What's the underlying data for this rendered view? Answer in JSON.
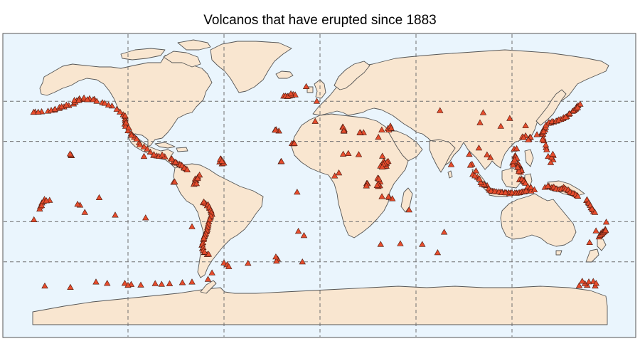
{
  "title": "Volcanos that have erupted since 1883",
  "colors": {
    "ocean": "#eaf5fd",
    "land": "#f9e6d0",
    "coast": "#555555",
    "grid": "#707070",
    "marker_fill": "#e64c2c",
    "marker_stroke": "#4a1a10"
  },
  "map": {
    "projection": "equirectangular",
    "graticule_longitudes": [
      -120,
      -60,
      0,
      60,
      120
    ],
    "graticule_latitudes": [
      -60,
      -30,
      30,
      60
    ]
  },
  "volcanoes": [
    [
      -178,
      52
    ],
    [
      -174,
      52.2
    ],
    [
      -170,
      52.6
    ],
    [
      -166,
      53.5
    ],
    [
      -163,
      54.7
    ],
    [
      -160,
      55.8
    ],
    [
      -157,
      56.8
    ],
    [
      -154,
      58
    ],
    [
      -153,
      59.4
    ],
    [
      -152,
      60.5
    ],
    [
      -150,
      61.3
    ],
    [
      -148,
      61.5
    ],
    [
      -144,
      62
    ],
    [
      -141,
      61.5
    ],
    [
      -136,
      59
    ],
    [
      -130,
      56.5
    ],
    [
      -127,
      54
    ],
    [
      -123,
      50
    ],
    [
      -122,
      48.8
    ],
    [
      -121.8,
      46.8
    ],
    [
      -121.7,
      45.3
    ],
    [
      -122,
      43
    ],
    [
      -121.5,
      41.3
    ],
    [
      -120,
      38
    ],
    [
      -118,
      36
    ],
    [
      -116,
      33.2
    ],
    [
      -113,
      29
    ],
    [
      -110,
      26
    ],
    [
      -106,
      22
    ],
    [
      -104,
      19.5
    ],
    [
      -102,
      19.2
    ],
    [
      -99,
      19.3
    ],
    [
      -97,
      18.6
    ],
    [
      -93,
      17.2
    ],
    [
      -91.5,
      15
    ],
    [
      -89.5,
      13.8
    ],
    [
      -88,
      13.2
    ],
    [
      -86.5,
      12.2
    ],
    [
      -85,
      10.6
    ],
    [
      -83.8,
      9.6
    ],
    [
      -78,
      2
    ],
    [
      -77.5,
      1
    ],
    [
      -78.3,
      -0.5
    ],
    [
      -78.6,
      -1.6
    ],
    [
      -73,
      -15.8
    ],
    [
      -71.5,
      -16.4
    ],
    [
      -70.5,
      -18
    ],
    [
      -69,
      -20
    ],
    [
      -68,
      -22
    ],
    [
      -67.5,
      -24.5
    ],
    [
      -68.5,
      -27
    ],
    [
      -69.5,
      -30
    ],
    [
      -70,
      -33
    ],
    [
      -70.4,
      -35.6
    ],
    [
      -71,
      -37.5
    ],
    [
      -71.8,
      -39.5
    ],
    [
      -72.4,
      -41.3
    ],
    [
      -72.8,
      -43.4
    ],
    [
      -73.2,
      -45.5
    ],
    [
      -73.8,
      -47.5
    ],
    [
      -73.5,
      -50
    ],
    [
      -72.3,
      -53
    ],
    [
      -70.5,
      -54.5
    ],
    [
      -155.3,
      19.4
    ],
    [
      -155.6,
      19.8
    ],
    [
      -156.2,
      20.7
    ],
    [
      -91.5,
      -0.5
    ],
    [
      -90.8,
      -0.3
    ],
    [
      -110,
      18.8
    ],
    [
      -112.5,
      27.6
    ],
    [
      -61.2,
      13.3
    ],
    [
      -61.5,
      16.2
    ],
    [
      -62,
      17
    ],
    [
      -62.7,
      14.7
    ],
    [
      -60.6,
      14
    ],
    [
      -28,
      38.6
    ],
    [
      -25.7,
      37.8
    ],
    [
      -27.4,
      38.8
    ],
    [
      -17.5,
      28.4
    ],
    [
      -16.6,
      28.3
    ],
    [
      -24.4,
      14.9
    ],
    [
      -19,
      64
    ],
    [
      -17.6,
      64.4
    ],
    [
      -16.8,
      65.1
    ],
    [
      -22.7,
      63.9
    ],
    [
      -20.5,
      63.6
    ],
    [
      -15.5,
      64.8
    ],
    [
      -8.6,
      71
    ],
    [
      14.2,
      40.8
    ],
    [
      15,
      37.7
    ],
    [
      15.2,
      38.8
    ],
    [
      14.9,
      38.5
    ],
    [
      25.4,
      36.4
    ],
    [
      27.2,
      36.6
    ],
    [
      38.6,
      38.6
    ],
    [
      42.5,
      39.7
    ],
    [
      44.3,
      39.7
    ],
    [
      43,
      38.6
    ],
    [
      36.5,
      33.1
    ],
    [
      44,
      41.5
    ],
    [
      40.7,
      12.6
    ],
    [
      41.5,
      13.5
    ],
    [
      42.6,
      15.1
    ],
    [
      39.9,
      15.4
    ],
    [
      38.5,
      12.3
    ],
    [
      39.1,
      11.8
    ],
    [
      40.2,
      11.2
    ],
    [
      41.4,
      11.5
    ],
    [
      36.6,
      2.3
    ],
    [
      36.1,
      2.6
    ],
    [
      37.6,
      -0.2
    ],
    [
      29.2,
      -1.4
    ],
    [
      29.7,
      -1.5
    ],
    [
      36.4,
      -3.6
    ],
    [
      35.9,
      -2.7
    ],
    [
      37.4,
      -3.1
    ],
    [
      43.3,
      -11.8
    ],
    [
      45.2,
      -12.8
    ],
    [
      55.7,
      -21.2
    ],
    [
      24.2,
      20.2
    ],
    [
      14.5,
      20.5
    ],
    [
      17.7,
      21
    ],
    [
      9.2,
      4.2
    ],
    [
      11.8,
      6.5
    ],
    [
      -13.5,
      -37.1
    ],
    [
      -14.3,
      -7.9
    ],
    [
      -10,
      -40.3
    ],
    [
      37.9,
      -46.9
    ],
    [
      50.2,
      -46.4
    ],
    [
      63.9,
      -46.9
    ],
    [
      73.5,
      -53.1
    ],
    [
      77.6,
      -37.8
    ],
    [
      110.4,
      -7.6
    ],
    [
      112.9,
      -7.9
    ],
    [
      114,
      -8
    ],
    [
      115.4,
      -8.3
    ],
    [
      116.5,
      -8.4
    ],
    [
      117.8,
      -8.2
    ],
    [
      119,
      -8.4
    ],
    [
      121.7,
      -8.5
    ],
    [
      123,
      -8.5
    ],
    [
      124.8,
      -8.3
    ],
    [
      126.4,
      -7.6
    ],
    [
      128,
      -7.4
    ],
    [
      130,
      -6.6
    ],
    [
      104.5,
      -3
    ],
    [
      101.3,
      -2
    ],
    [
      98.4,
      3.2
    ],
    [
      95.5,
      5.4
    ],
    [
      106,
      -6.4
    ],
    [
      107.7,
      -7.2
    ],
    [
      108.4,
      -7.3
    ],
    [
      125.4,
      1.4
    ],
    [
      124.7,
      1.4
    ],
    [
      127.5,
      1.1
    ],
    [
      127.3,
      0.8
    ],
    [
      127.9,
      -0.5
    ],
    [
      129.7,
      -4.5
    ],
    [
      130.8,
      -6.3
    ],
    [
      131.2,
      -5.1
    ],
    [
      131.9,
      -7.1
    ],
    [
      120.4,
      13.9
    ],
    [
      121,
      14.1
    ],
    [
      123.7,
      13.3
    ],
    [
      124.1,
      12.8
    ],
    [
      124.8,
      11.6
    ],
    [
      125.5,
      9.6
    ],
    [
      125.4,
      7
    ],
    [
      124.3,
      10.4
    ],
    [
      122,
      19.5
    ],
    [
      122.2,
      18.8
    ],
    [
      121.3,
      24.3
    ],
    [
      130.6,
      31.6
    ],
    [
      131.1,
      32.9
    ],
    [
      131.6,
      33.1
    ],
    [
      138.5,
      35.3
    ],
    [
      138.6,
      36.4
    ],
    [
      139.4,
      35.4
    ],
    [
      140.7,
      38.7
    ],
    [
      140.1,
      39.8
    ],
    [
      141,
      40.6
    ],
    [
      142.7,
      43.6
    ],
    [
      144.2,
      43.8
    ],
    [
      146,
      44.5
    ],
    [
      148.2,
      45.4
    ],
    [
      150.6,
      46.5
    ],
    [
      152.3,
      47.8
    ],
    [
      154.2,
      48.6
    ],
    [
      155.5,
      50.3
    ],
    [
      157.8,
      52.5
    ],
    [
      158.9,
      53.3
    ],
    [
      159.6,
      54
    ],
    [
      160.4,
      55.9
    ],
    [
      161.3,
      56.7
    ],
    [
      162.6,
      57.8
    ],
    [
      142.6,
      18.8
    ],
    [
      145.7,
      16.3
    ],
    [
      145.8,
      19.5
    ],
    [
      140,
      30.5
    ],
    [
      139.5,
      32.5
    ],
    [
      141.3,
      25.4
    ],
    [
      128.5,
      41.8
    ],
    [
      126.5,
      33.4
    ],
    [
      118.6,
      47.2
    ],
    [
      113,
      41.3
    ],
    [
      99.3,
      25.1
    ],
    [
      106.5,
      18
    ],
    [
      95,
      13
    ],
    [
      94,
      12.2
    ],
    [
      93.3,
      20.4
    ],
    [
      82,
      12.7
    ],
    [
      75,
      53
    ],
    [
      102,
      51.5
    ],
    [
      100,
      44
    ],
    [
      104.4,
      20
    ],
    [
      143.2,
      -3.7
    ],
    [
      144.9,
      -4.4
    ],
    [
      145.7,
      -4.8
    ],
    [
      146.9,
      -5.2
    ],
    [
      148.1,
      -5.5
    ],
    [
      150.5,
      -5.7
    ],
    [
      151.4,
      -5.3
    ],
    [
      152.2,
      -4.3
    ],
    [
      154.8,
      -6.5
    ],
    [
      155.6,
      -6.8
    ],
    [
      156.9,
      -8.3
    ],
    [
      159,
      -9
    ],
    [
      160.6,
      -10.4
    ],
    [
      166.6,
      -14.1
    ],
    [
      167.6,
      -15.4
    ],
    [
      168.4,
      -16.5
    ],
    [
      169.4,
      -19.5
    ],
    [
      170.6,
      -21.1
    ],
    [
      171,
      -22.4
    ],
    [
      174.4,
      -41.3
    ],
    [
      175.6,
      -39.3
    ],
    [
      176.3,
      -38.5
    ],
    [
      177.2,
      -37.5
    ],
    [
      178.3,
      -35.7
    ],
    [
      175.7,
      -39.6
    ],
    [
      175.5,
      -38.8
    ],
    [
      176.5,
      -37.6
    ],
    [
      168.5,
      -45.5
    ],
    [
      172.5,
      -36.8
    ],
    [
      178.9,
      -30.3
    ],
    [
      -178.8,
      -28.5
    ],
    [
      -175.2,
      -20.5
    ],
    [
      -174.8,
      -18.8
    ],
    [
      -173.8,
      -15.9
    ],
    [
      -172.2,
      -13.3
    ],
    [
      -169,
      -14
    ],
    [
      -150,
      -17.6
    ],
    [
      -138,
      -12
    ],
    [
      -128,
      -25
    ],
    [
      -109,
      -27.1
    ],
    [
      -80,
      -33.7
    ],
    [
      -60,
      -60.7
    ],
    [
      -58,
      -62.1
    ],
    [
      -57,
      -63.5
    ],
    [
      -26.5,
      -57.8
    ],
    [
      -27.2,
      -59.4
    ],
    [
      -27.6,
      -56.3
    ],
    [
      -11,
      -60
    ],
    [
      167,
      -77.5
    ],
    [
      -156,
      -79
    ],
    [
      -140,
      -75
    ],
    [
      -133,
      -76
    ],
    [
      -118,
      -76.8
    ],
    [
      -112,
      -77.3
    ],
    [
      -103,
      -76.2
    ],
    [
      -94,
      -76.3
    ],
    [
      -80,
      -75
    ],
    [
      -122,
      -76
    ],
    [
      165.6,
      -76.2
    ],
    [
      163.9,
      -74.4
    ],
    [
      170.8,
      -74.6
    ],
    [
      172,
      -78
    ],
    [
      -179,
      51.8
    ],
    [
      -176.1,
      51.9
    ],
    [
      -168,
      53.2
    ],
    [
      -165.6,
      54.1
    ],
    [
      -162.9,
      55.4
    ],
    [
      -161.5,
      56
    ],
    [
      -158.5,
      57.2
    ],
    [
      -150.4,
      61.9
    ],
    [
      -147.5,
      62.5
    ],
    [
      -153.5,
      60.7
    ],
    [
      -141.8,
      61.2
    ],
    [
      -139.5,
      60
    ],
    [
      -134.5,
      58.5
    ],
    [
      -132.2,
      57.2
    ],
    [
      -125,
      52
    ],
    [
      -121.8,
      49.1
    ],
    [
      -121.2,
      44
    ],
    [
      -119.6,
      40.2
    ],
    [
      -117.8,
      34.6
    ],
    [
      -114.6,
      31.8
    ],
    [
      -108,
      24.3
    ],
    [
      -103.8,
      20.2
    ],
    [
      -100.7,
      18.9
    ],
    [
      -98.6,
      19.9
    ],
    [
      -92.5,
      16.7
    ],
    [
      -90.8,
      14.3
    ],
    [
      -90.3,
      14.5
    ],
    [
      -87.4,
      12.6
    ],
    [
      -86.2,
      11.8
    ],
    [
      -84.8,
      10.1
    ],
    [
      -83,
      8.8
    ],
    [
      -76.3,
      3.4
    ],
    [
      -75.3,
      4.9
    ],
    [
      -77.9,
      0.6
    ],
    [
      -76.5,
      2.3
    ],
    [
      -78.8,
      -2
    ],
    [
      -77.2,
      -1.5
    ],
    [
      -72.6,
      -15.2
    ],
    [
      -70,
      -17.2
    ],
    [
      -69.2,
      -19.1
    ],
    [
      -68.3,
      -21.3
    ],
    [
      -67.9,
      -23.3
    ],
    [
      -68.2,
      -25.7
    ],
    [
      -68.9,
      -28.2
    ],
    [
      -69.8,
      -31.6
    ],
    [
      -70.3,
      -34.2
    ],
    [
      -70.8,
      -36.6
    ],
    [
      -71.4,
      -38.8
    ],
    [
      -72.1,
      -40.5
    ],
    [
      -72.6,
      -42.4
    ],
    [
      -73.5,
      -46.7
    ],
    [
      -73,
      -49.2
    ],
    [
      -72.9,
      -51.4
    ],
    [
      -72.1,
      -52.7
    ],
    [
      -69.6,
      -54.3
    ],
    [
      -150.8,
      60.7
    ],
    [
      -145.4,
      61.2
    ],
    [
      -60.1,
      13.9
    ],
    [
      -62.3,
      16.8
    ],
    [
      -61.3,
      15.3
    ],
    [
      -27.9,
      38.4
    ],
    [
      -16,
      28.5
    ],
    [
      -24.1,
      15
    ],
    [
      -18.3,
      64.5
    ],
    [
      -21.6,
      63.9
    ],
    [
      -20,
      63.8
    ],
    [
      -18.2,
      65.6
    ],
    [
      14.5,
      40.5
    ],
    [
      14.9,
      37.9
    ],
    [
      24.9,
      36.6
    ],
    [
      44.5,
      39.9
    ],
    [
      41,
      12.9
    ],
    [
      41.9,
      14.6
    ],
    [
      40.3,
      13.9
    ],
    [
      39.5,
      12.9
    ],
    [
      37.8,
      11.6
    ],
    [
      38.9,
      10.9
    ],
    [
      36.8,
      1.9
    ],
    [
      36.3,
      -1.9
    ],
    [
      29.4,
      -1.6
    ],
    [
      35.7,
      -2.9
    ],
    [
      42.8,
      -11.4
    ],
    [
      29,
      -3.2
    ],
    [
      38.7,
      -11.2
    ],
    [
      -3,
      45
    ],
    [
      97.5,
      8
    ],
    [
      120.7,
      12.3
    ],
    [
      123,
      17.4
    ],
    [
      122.9,
      24.6
    ],
    [
      130.2,
      31.2
    ],
    [
      135.6,
      35.1
    ],
    [
      139,
      36.9
    ],
    [
      139.8,
      37.4
    ],
    [
      141.3,
      42.4
    ],
    [
      143.1,
      44.1
    ],
    [
      145,
      44.9
    ],
    [
      147.6,
      45.2
    ],
    [
      149.3,
      46.2
    ],
    [
      151.8,
      47.1
    ],
    [
      153.5,
      48.2
    ],
    [
      156,
      50.8
    ],
    [
      158.4,
      52.9
    ],
    [
      160,
      54.6
    ],
    [
      161,
      55.3
    ],
    [
      141.7,
      23.8
    ],
    [
      144.2,
      14.2
    ],
    [
      144.7,
      17.9
    ],
    [
      145.5,
      20.5
    ],
    [
      139.1,
      31.4
    ],
    [
      141.1,
      27.3
    ],
    [
      128.5,
      34.2
    ],
    [
      127.3,
      32.9
    ],
    [
      118.5,
      -9
    ],
    [
      120,
      -8.3
    ],
    [
      122.6,
      -8.7
    ],
    [
      124.2,
      -8.4
    ],
    [
      125.8,
      -7.8
    ],
    [
      127.4,
      -7.6
    ],
    [
      128.8,
      -6.9
    ],
    [
      103,
      -2.6
    ],
    [
      102.4,
      -1.8
    ],
    [
      100.5,
      -0.8
    ],
    [
      99.6,
      2
    ],
    [
      96.8,
      4.3
    ],
    [
      105.5,
      -5.2
    ],
    [
      106.9,
      -6.9
    ],
    [
      109.2,
      -7.4
    ],
    [
      111.8,
      -7.6
    ],
    [
      113.6,
      -8.2
    ],
    [
      115.9,
      -8.3
    ],
    [
      126.2,
      1.7
    ],
    [
      127.4,
      0.3
    ],
    [
      128.4,
      -1.2
    ],
    [
      129.9,
      -3.7
    ],
    [
      131.8,
      -4.3
    ],
    [
      134,
      -6.1
    ],
    [
      124.5,
      9.1
    ],
    [
      125.9,
      8.3
    ],
    [
      124.3,
      7.6
    ],
    [
      123.5,
      10.7
    ],
    [
      120.9,
      15.1
    ],
    [
      121.6,
      16.3
    ],
    [
      140.6,
      -4.3
    ],
    [
      142.4,
      -3.3
    ],
    [
      146.1,
      -4.1
    ],
    [
      147.6,
      -5.4
    ],
    [
      149.4,
      -5.9
    ],
    [
      150.9,
      -5.4
    ],
    [
      152.8,
      -4.9
    ],
    [
      153.6,
      -5.6
    ],
    [
      155.1,
      -6.1
    ],
    [
      156.3,
      -7.7
    ],
    [
      158.1,
      -8.6
    ],
    [
      159.8,
      -9.8
    ],
    [
      161.1,
      -10.9
    ],
    [
      166.9,
      -13.5
    ],
    [
      168,
      -16
    ],
    [
      168.9,
      -17.8
    ],
    [
      170,
      -20.4
    ],
    [
      171.8,
      -23
    ],
    [
      175,
      -40.2
    ],
    [
      176,
      -39
    ],
    [
      176.9,
      -38.1
    ],
    [
      177.8,
      -37.2
    ],
    [
      178.5,
      -36.5
    ],
    [
      -174,
      -17.9
    ],
    [
      -172.8,
      -14.8
    ],
    [
      -171,
      -14.3
    ],
    [
      -151.5,
      -16.9
    ],
    [
      -147,
      -23
    ],
    [
      -120,
      -77.5
    ],
    [
      -99,
      -76.7
    ],
    [
      -86,
      -75.5
    ],
    [
      -70,
      -73
    ],
    [
      172.6,
      -76
    ],
    [
      168,
      -74.9
    ],
    [
      162,
      -77.8
    ],
    [
      -67.5,
      -68.2
    ],
    [
      -45,
      -61
    ],
    [
      -172,
      -78
    ],
    [
      -2,
      60
    ],
    [
      39,
      19
    ]
  ]
}
